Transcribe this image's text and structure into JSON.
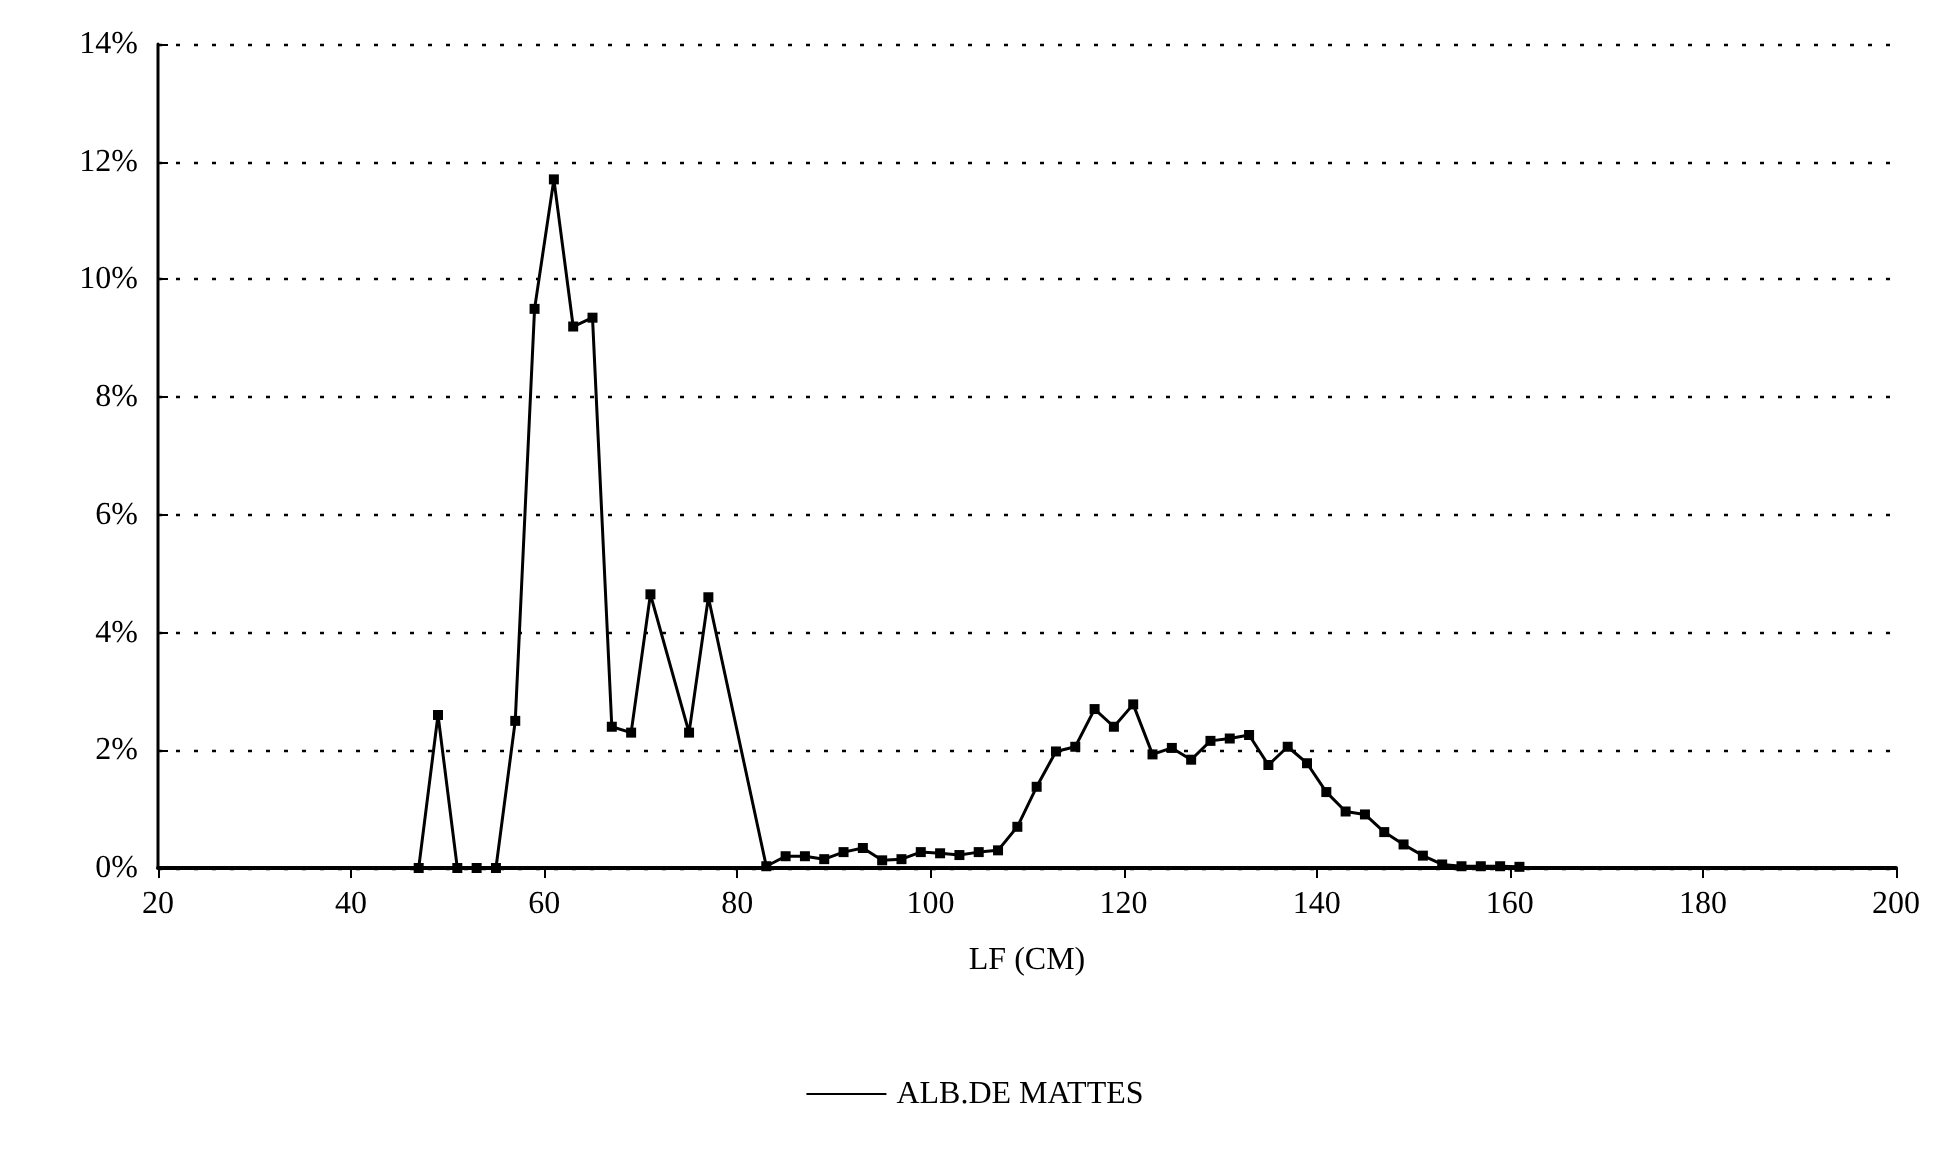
{
  "chart_data": {
    "type": "line",
    "xlabel": "LF (CM)",
    "xlim": [
      20,
      200
    ],
    "xticks": [
      20,
      40,
      60,
      80,
      100,
      120,
      140,
      160,
      180,
      200
    ],
    "ylim": [
      0,
      14
    ],
    "yticks": [
      {
        "value": 0,
        "label": "0%"
      },
      {
        "value": 2,
        "label": "2%"
      },
      {
        "value": 4,
        "label": "4%"
      },
      {
        "value": 6,
        "label": "6%"
      },
      {
        "value": 8,
        "label": "8%"
      },
      {
        "value": 10,
        "label": "10%"
      },
      {
        "value": 12,
        "label": "12%"
      },
      {
        "value": 14,
        "label": "14%"
      }
    ],
    "grid": "y",
    "legend": "bottom",
    "marker": "square",
    "line_style": "solid",
    "series": [
      {
        "name": "ALB.DE MATTES",
        "color": "#000000",
        "x": [
          47,
          49,
          51,
          53,
          55,
          57,
          59,
          61,
          63,
          65,
          67,
          69,
          71,
          75,
          77,
          83,
          85,
          87,
          89,
          91,
          93,
          95,
          97,
          99,
          101,
          103,
          105,
          107,
          109,
          111,
          113,
          115,
          117,
          119,
          121,
          123,
          125,
          127,
          129,
          131,
          133,
          135,
          137,
          139,
          141,
          143,
          145,
          147,
          149,
          151,
          153,
          155,
          157,
          159,
          161
        ],
        "values": [
          0,
          2.6,
          0,
          0,
          0,
          2.5,
          9.5,
          11.7,
          9.2,
          9.35,
          2.4,
          2.3,
          4.65,
          2.3,
          4.6,
          0.03,
          0.2,
          0.2,
          0.15,
          0.27,
          0.34,
          0.13,
          0.15,
          0.27,
          0.25,
          0.22,
          0.27,
          0.3,
          0.7,
          1.38,
          1.98,
          2.06,
          2.7,
          2.4,
          2.78,
          1.93,
          2.04,
          1.84,
          2.16,
          2.2,
          2.26,
          1.75,
          2.06,
          1.78,
          1.29,
          0.96,
          0.91,
          0.61,
          0.4,
          0.21,
          0.06,
          0.03,
          0.03,
          0.03,
          0.02
        ]
      }
    ]
  }
}
